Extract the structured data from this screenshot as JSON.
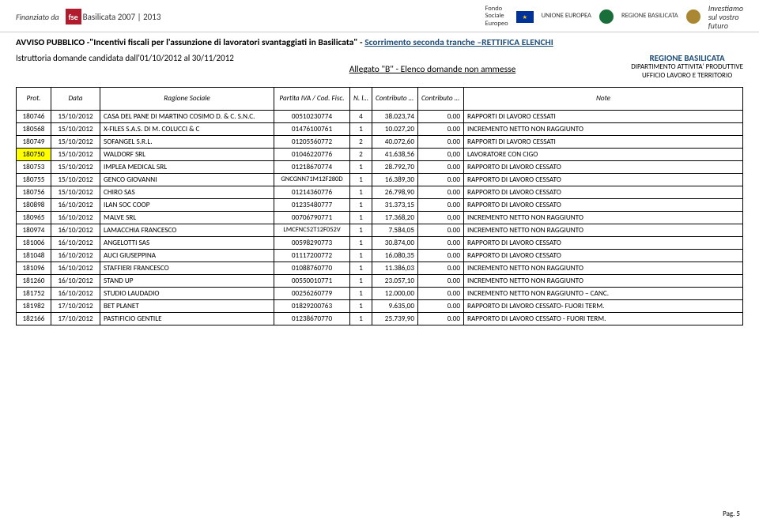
{
  "header": {
    "funded_by": "Finanziato da",
    "fse_abbr": "fse",
    "program": "Basilicata 2007 | 2013",
    "fondo_lines": "Fondo\nSociale\nEuropeo",
    "ue_label": "UNIONE EUROPEA",
    "region_label": "REGIONE BASILICATA",
    "invest": "Investiamo\nsul vostro\nfuturo"
  },
  "titles": {
    "main_prefix": "AVVISO PUBBLICO -\"Incentivi fiscali per l'assunzione di lavoratori svantaggiati in Basilicata\" - ",
    "main_link": "Scorrimento seconda tranche –RETTIFICA ELENCHI",
    "istruttoria": "Istruttoria domande candidata dall'01/10/2012 al 30/11/2012",
    "allegato": "Allegato  \"B\" - Elenco domande non ammesse",
    "regione": "REGIONE BASILICATA",
    "dip": "DIPARTIMENTO ATTIVITA' PRODUTTIVE",
    "uff": "UFFICIO LAVORO E TERRITORIO"
  },
  "columns": [
    "Prot.",
    "Data",
    "Ragione Sociale",
    "Partita IVA / Cod. Fisc.",
    "N. lav.",
    "Contributo Richiesto",
    "Contributo Concesso",
    "Note"
  ],
  "rows": [
    {
      "prot": "180746",
      "data": "15/10/2012",
      "rag": "CASA DEL PANE DI MARTINO COSIMO D. & C. S.N.C.",
      "piva": "00510230774",
      "nlav": "4",
      "req": "38.023,74",
      "con": "0.00",
      "note": "RAPPORTI DI LAVORO CESSATI",
      "hl": false
    },
    {
      "prot": "180568",
      "data": "15/10/2012",
      "rag": "X-FILES S.A.S. DI M. COLUCCI & C",
      "piva": "01476100761",
      "nlav": "1",
      "req": "10.027,20",
      "con": "0.00",
      "note": "INCREMENTO NETTO NON RAGGIUNTO",
      "hl": false
    },
    {
      "prot": "180749",
      "data": "15/10/2012",
      "rag": "SOFANGEL S.R.L.",
      "piva": "01205560772",
      "nlav": "2",
      "req": "40.072,60",
      "con": "0.00",
      "note": "RAPPORTI DI LAVORO CESSATI",
      "hl": false
    },
    {
      "prot": "180750",
      "data": "15/10/2012",
      "rag": "WALDORF SRL",
      "piva": "01046220776",
      "nlav": "2",
      "req": "41.638,56",
      "con": "0,00",
      "note": "LAVORATORE CON CIGO",
      "hl": true
    },
    {
      "prot": "180753",
      "data": "15/10/2012",
      "rag": "IMPLEA MEDICAL SRL",
      "piva": "01218670774",
      "nlav": "1",
      "req": "28.792,70",
      "con": "0.00",
      "note": "RAPPORTO DI LAVORO CESSATO",
      "hl": false
    },
    {
      "prot": "180755",
      "data": "15/10/2012",
      "rag": "GENCO GIOVANNI",
      "piva": "GNCGNN71M12F280D",
      "nlav": "1",
      "req": "16.389,30",
      "con": "0.00",
      "note": "RAPPORTO DI LAVORO CESSATO",
      "hl": false,
      "smallpiva": true
    },
    {
      "prot": "180756",
      "data": "15/10/2012",
      "rag": "CHIRO SAS",
      "piva": "01214360776",
      "nlav": "1",
      "req": "26.798,90",
      "con": "0.00",
      "note": "RAPPORTO DI LAVORO CESSATO",
      "hl": false
    },
    {
      "prot": "180898",
      "data": "16/10/2012",
      "rag": "ILAN SOC COOP",
      "piva": "01235480777",
      "nlav": "1",
      "req": "31.373,15",
      "con": "0.00",
      "note": "RAPPORTO DI LAVORO CESSATO",
      "hl": false
    },
    {
      "prot": "180965",
      "data": "16/10/2012",
      "rag": "MALVE SRL",
      "piva": "00706790771",
      "nlav": "1",
      "req": "17.368,20",
      "con": "0,00",
      "note": "INCREMENTO NETTO NON RAGGIUNTO",
      "hl": false
    },
    {
      "prot": "180974",
      "data": "16/10/2012",
      "rag": "LAMACCHIA FRANCESCO",
      "piva": "LMCFNC52T12F052V",
      "nlav": "1",
      "req": "7.584,05",
      "con": "0.00",
      "note": "INCREMENTO NETTO NON RAGGIUNTO",
      "hl": false,
      "smallpiva": true
    },
    {
      "prot": "181006",
      "data": "16/10/2012",
      "rag": "ANGELOTTI SAS",
      "piva": "00598290773",
      "nlav": "1",
      "req": "30.874,00",
      "con": "0.00",
      "note": "RAPPORTO DI LAVORO CESSATO",
      "hl": false
    },
    {
      "prot": "181048",
      "data": "16/10/2012",
      "rag": "AUCI GIUSEPPINA",
      "piva": "01117200772",
      "nlav": "1",
      "req": "16.080,35",
      "con": "0.00",
      "note": "RAPPORTO DI LAVORO CESSATO",
      "hl": false
    },
    {
      "prot": "181096",
      "data": "16/10/2012",
      "rag": "STAFFIERI FRANCESCO",
      "piva": "01088760770",
      "nlav": "1",
      "req": "11.386,03",
      "con": "0.00",
      "note": "INCREMENTO NETTO NON RAGGIUNTO",
      "hl": false
    },
    {
      "prot": "181260",
      "data": "16/10/2012",
      "rag": "STAND UP",
      "piva": "00550010771",
      "nlav": "1",
      "req": "23.057,10",
      "con": "0.00",
      "note": "INCREMENTO NETTO NON RAGGIUNTO",
      "hl": false
    },
    {
      "prot": "181752",
      "data": "16/10/2012",
      "rag": "STUDIO LAUDADIO",
      "piva": "00256260779",
      "nlav": "1",
      "req": "12.000,00",
      "con": "0.00",
      "note": "INCREMENTO NETTO NON RAGGIUNTO – CANC.",
      "hl": false
    },
    {
      "prot": "181982",
      "data": "17/10/2012",
      "rag": "BET PLANET",
      "piva": "01829200763",
      "nlav": "1",
      "req": "9.635,00",
      "con": "0.00",
      "note": "RAPPORTO DI LAVORO CESSATO- FUORI TERM.",
      "hl": false
    },
    {
      "prot": "182166",
      "data": "17/10/2012",
      "rag": "PASTIFICIO GENTILE",
      "piva": "01238670770",
      "nlav": "1",
      "req": "25.739,90",
      "con": "0.00",
      "note": "RAPPORTO DI LAVORO CESSATO - FUORI TERM.",
      "hl": false
    }
  ],
  "footer": "Pag. 5"
}
